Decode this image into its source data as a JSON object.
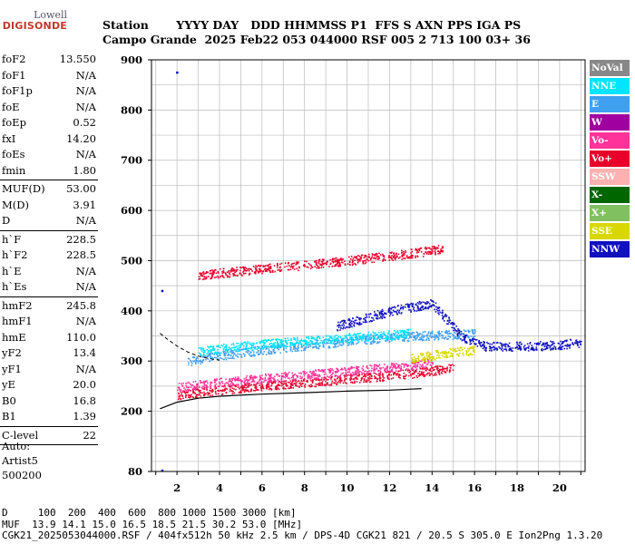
{
  "logo": {
    "line1": "Lowell",
    "line2": "DIGISONDE"
  },
  "header": {
    "line1": "Station       YYYY DAY   DDD HHMMSS P1  FFS S AXN PPS IGA PS",
    "line2": "Campo Grande  2025 Feb22 053 044000 RSF 005 2 713 100 03+ 36"
  },
  "params": [
    [
      {
        "label": "foF2",
        "value": "13.550"
      },
      {
        "label": "foF1",
        "value": "N/A"
      },
      {
        "label": "foF1p",
        "value": "N/A"
      },
      {
        "label": "foE",
        "value": "N/A"
      },
      {
        "label": "foEp",
        "value": "0.52"
      },
      {
        "label": "fxI",
        "value": "14.20"
      },
      {
        "label": "foEs",
        "value": "N/A"
      },
      {
        "label": "fmin",
        "value": "1.80"
      }
    ],
    [
      {
        "label": "MUF(D)",
        "value": "53.00"
      },
      {
        "label": "M(D)",
        "value": "3.91"
      },
      {
        "label": "D",
        "value": "N/A"
      }
    ],
    [
      {
        "label": "h`F",
        "value": "228.5"
      },
      {
        "label": "h`F2",
        "value": "228.5"
      },
      {
        "label": "h`E",
        "value": "N/A"
      },
      {
        "label": "h`Es",
        "value": "N/A"
      }
    ],
    [
      {
        "label": "hmF2",
        "value": "245.8"
      },
      {
        "label": "hmF1",
        "value": "N/A"
      },
      {
        "label": "hmE",
        "value": "110.0"
      },
      {
        "label": "yF2",
        "value": "13.4"
      },
      {
        "label": "yF1",
        "value": "N/A"
      },
      {
        "label": "yE",
        "value": "20.0"
      },
      {
        "label": "B0",
        "value": "16.8"
      },
      {
        "label": "B1",
        "value": "1.39"
      }
    ],
    [
      {
        "label": "C-level",
        "value": "22"
      }
    ]
  ],
  "auto": {
    "line1": "Auto:",
    "line2": "Artist5",
    "line3": "500200"
  },
  "legend": [
    {
      "label": "NoVal",
      "color": "#888888"
    },
    {
      "label": "NNE",
      "color": "#00e5ff"
    },
    {
      "label": "E",
      "color": "#3fa0f0"
    },
    {
      "label": "W",
      "color": "#a000a0"
    },
    {
      "label": "Vo-",
      "color": "#ff3399"
    },
    {
      "label": "Vo+",
      "color": "#e8002a"
    },
    {
      "label": "SSW",
      "color": "#ffb0b0"
    },
    {
      "label": "X-",
      "color": "#006600"
    },
    {
      "label": "X+",
      "color": "#80c060"
    },
    {
      "label": "SSE",
      "color": "#d8d800"
    },
    {
      "label": "NNW",
      "color": "#1010c0"
    }
  ],
  "bottom": {
    "line1": "D     100  200  400  600  800 1000 1500 3000 [km]",
    "line2": "MUF  13.9 14.1 15.0 16.5 18.5 21.5 30.2 53.0 [MHz]",
    "line3": "CGK21_2025053044000.RSF / 404fx512h 50 kHz 2.5 km / DPS-4D CGK21 821 / 20.5 S 305.0 E Ion2Png 1.3.20"
  },
  "chart_data": {
    "type": "scatter",
    "xlim": [
      0.8,
      21.2
    ],
    "ylim": [
      80,
      900
    ],
    "xticks": [
      2,
      4,
      6,
      8,
      10,
      12,
      14,
      16,
      18,
      20
    ],
    "yticks": [
      80,
      200,
      300,
      400,
      500,
      600,
      700,
      800,
      900
    ],
    "grid": true,
    "legend_position": "right",
    "traces": [
      {
        "series": "Vo+",
        "color": "#e8002a",
        "x": [
          2.0,
          3.0,
          4.0,
          5.0,
          6.0,
          7.0,
          8.0,
          9.0,
          10.0,
          11.0,
          12.0,
          13.0,
          14.0,
          15.0
        ],
        "y": [
          232,
          238,
          243,
          247,
          251,
          255,
          258,
          261,
          265,
          268,
          272,
          276,
          281,
          287
        ]
      },
      {
        "series": "Vo-",
        "color": "#ff3399",
        "x": [
          2.0,
          4.0,
          6.0,
          8.0,
          10.0,
          12.0,
          14.0
        ],
        "y": [
          248,
          258,
          266,
          273,
          280,
          288,
          297
        ]
      },
      {
        "series": "E",
        "color": "#3fa0f0",
        "x": [
          2.5,
          4.0,
          6.0,
          8.0,
          10.0,
          12.0,
          14.0,
          16.0
        ],
        "y": [
          300,
          312,
          322,
          332,
          340,
          348,
          352,
          356
        ]
      },
      {
        "series": "NNE",
        "color": "#00e5ff",
        "x": [
          3.0,
          5.0,
          7.0,
          9.0,
          11.0,
          13.0
        ],
        "y": [
          320,
          330,
          338,
          344,
          350,
          356
        ]
      },
      {
        "series": "SSE",
        "color": "#d8d800",
        "x": [
          13.0,
          14.0,
          15.0,
          16.0
        ],
        "y": [
          305,
          312,
          318,
          322
        ]
      },
      {
        "series": "NNW",
        "color": "#1010c0",
        "x": [
          9.5,
          11.0,
          12.5,
          14.0,
          15.5,
          16.5,
          18.5,
          20.0,
          21.0
        ],
        "y": [
          370,
          388,
          405,
          415,
          345,
          330,
          330,
          333,
          338
        ]
      },
      {
        "series": "Vo+",
        "color": "#e8002a",
        "x": [
          3.0,
          5.0,
          7.0,
          9.0,
          11.0,
          13.0,
          14.5
        ],
        "y": [
          472,
          480,
          488,
          496,
          505,
          515,
          525
        ]
      }
    ],
    "profile": {
      "x": [
        1.2,
        2.0,
        3.0,
        4.0,
        6.0,
        8.0,
        10.0,
        12.0,
        13.0,
        13.5
      ],
      "y": [
        205,
        218,
        226,
        230,
        234,
        237,
        240,
        242,
        244,
        245
      ]
    },
    "dashed_curve": {
      "x": [
        1.2,
        1.5,
        2.0,
        2.5,
        3.0,
        3.5,
        4.0
      ],
      "y": [
        355,
        345,
        330,
        318,
        310,
        305,
        302
      ]
    },
    "isolated_points": [
      {
        "x": 2.0,
        "y": 875
      },
      {
        "x": 1.3,
        "y": 440
      },
      {
        "x": 1.3,
        "y": 82
      }
    ]
  }
}
